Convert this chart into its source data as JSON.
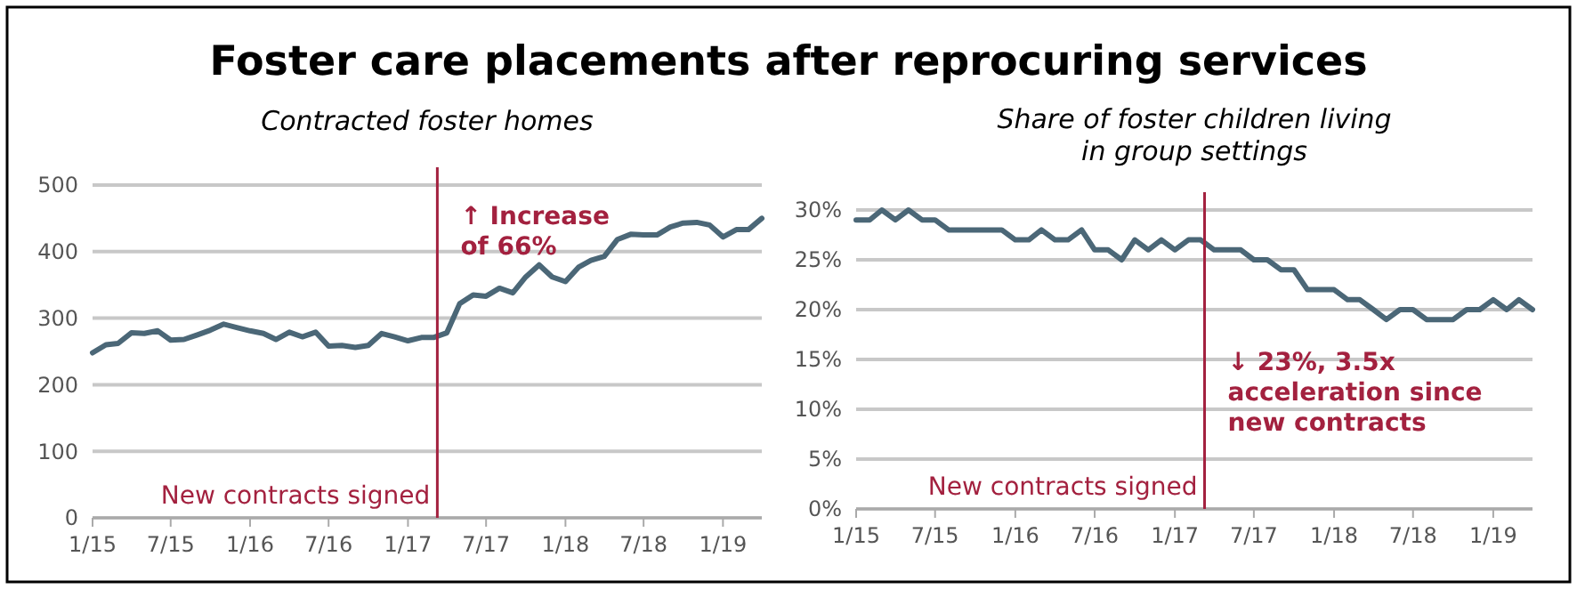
{
  "chart_data": [
    {
      "type": "line",
      "title": "Foster care placements after reprocuring services",
      "subtitle": "Contracted foster homes",
      "x": [
        "2015-01",
        "2015-02",
        "2015-03",
        "2015-04",
        "2015-05",
        "2015-06",
        "2015-07",
        "2015-08",
        "2015-09",
        "2015-10",
        "2015-11",
        "2015-12",
        "2016-01",
        "2016-02",
        "2016-03",
        "2016-04",
        "2016-05",
        "2016-06",
        "2016-07",
        "2016-08",
        "2016-09",
        "2016-10",
        "2016-11",
        "2016-12",
        "2017-01",
        "2017-02",
        "2017-03",
        "2017-04",
        "2017-05",
        "2017-06",
        "2017-07",
        "2017-08",
        "2017-09",
        "2017-10",
        "2017-11",
        "2017-12",
        "2018-01",
        "2018-02",
        "2018-03",
        "2018-04",
        "2018-05",
        "2018-06",
        "2018-07",
        "2018-08",
        "2018-09",
        "2018-10",
        "2018-11",
        "2018-12",
        "2019-01",
        "2019-02",
        "2019-03",
        "2019-04"
      ],
      "series": [
        {
          "color": "#4b6777",
          "values": [
            248,
            260,
            262,
            278,
            277,
            281,
            267,
            268,
            275,
            282,
            291,
            286,
            281,
            277,
            268,
            279,
            272,
            279,
            258,
            259,
            256,
            259,
            277,
            272,
            266,
            271,
            271,
            278,
            322,
            335,
            333,
            345,
            338,
            362,
            380,
            362,
            355,
            377,
            387,
            393,
            418,
            426,
            425,
            425,
            437,
            443,
            444,
            440,
            422,
            433,
            433,
            450
          ]
        }
      ],
      "xlim": [
        "2015-01",
        "2019-04"
      ],
      "xticks": [
        {
          "value": "2015-01",
          "label": "1/15"
        },
        {
          "value": "2015-07",
          "label": "7/15"
        },
        {
          "value": "2016-01",
          "label": "1/16"
        },
        {
          "value": "2016-07",
          "label": "7/16"
        },
        {
          "value": "2017-01",
          "label": "1/17"
        },
        {
          "value": "2017-07",
          "label": "7/17"
        },
        {
          "value": "2018-01",
          "label": "1/18"
        },
        {
          "value": "2018-07",
          "label": "7/18"
        },
        {
          "value": "2019-01",
          "label": "1/19"
        }
      ],
      "ylim": [
        0,
        500
      ],
      "yticks": [
        0,
        100,
        200,
        300,
        400,
        500
      ],
      "grid": "y",
      "ref_lines": [
        {
          "axis": "x",
          "value": "2017-03-10",
          "label": "New contracts signed",
          "color": "#a3213f"
        }
      ],
      "annotations": [
        "↑ Increase\nof 66%"
      ]
    },
    {
      "type": "line",
      "title": "Share of foster children living\nin group settings",
      "x": [
        "2015-01",
        "2015-02",
        "2015-03",
        "2015-04",
        "2015-05",
        "2015-06",
        "2015-07",
        "2015-08",
        "2015-09",
        "2015-10",
        "2015-11",
        "2015-12",
        "2016-01",
        "2016-02",
        "2016-03",
        "2016-04",
        "2016-05",
        "2016-06",
        "2016-07",
        "2016-08",
        "2016-09",
        "2016-10",
        "2016-11",
        "2016-12",
        "2017-01",
        "2017-02",
        "2017-03",
        "2017-04",
        "2017-05",
        "2017-06",
        "2017-07",
        "2017-08",
        "2017-09",
        "2017-10",
        "2017-11",
        "2017-12",
        "2018-01",
        "2018-02",
        "2018-03",
        "2018-04",
        "2018-05",
        "2018-06",
        "2018-07",
        "2018-08",
        "2018-09",
        "2018-10",
        "2018-11",
        "2018-12",
        "2019-01",
        "2019-02",
        "2019-03",
        "2019-04"
      ],
      "series": [
        {
          "color": "#4b6777",
          "values": [
            29,
            29,
            30,
            29,
            30,
            29,
            29,
            28,
            28,
            28,
            28,
            28,
            27,
            27,
            28,
            27,
            27,
            28,
            26,
            26,
            25,
            27,
            26,
            27,
            26,
            27,
            27,
            26,
            26,
            26,
            25,
            25,
            24,
            24,
            22,
            22,
            22,
            21,
            21,
            20,
            19,
            20,
            20,
            19,
            19,
            19,
            20,
            20,
            21,
            20,
            21,
            20
          ]
        }
      ],
      "xlim": [
        "2015-01",
        "2019-04"
      ],
      "xticks": [
        {
          "value": "2015-01",
          "label": "1/15"
        },
        {
          "value": "2015-07",
          "label": "7/15"
        },
        {
          "value": "2016-01",
          "label": "1/16"
        },
        {
          "value": "2016-07",
          "label": "7/16"
        },
        {
          "value": "2017-01",
          "label": "1/17"
        },
        {
          "value": "2017-07",
          "label": "7/17"
        },
        {
          "value": "2018-01",
          "label": "1/18"
        },
        {
          "value": "2018-07",
          "label": "7/18"
        },
        {
          "value": "2019-01",
          "label": "1/19"
        }
      ],
      "ylim": [
        0,
        30
      ],
      "yticks": [
        {
          "value": 0,
          "label": "0%"
        },
        {
          "value": 5,
          "label": "5%"
        },
        {
          "value": 10,
          "label": "10%"
        },
        {
          "value": 15,
          "label": "15%"
        },
        {
          "value": 20,
          "label": "20%"
        },
        {
          "value": 25,
          "label": "25%"
        },
        {
          "value": 30,
          "label": "30%"
        }
      ],
      "grid": "y",
      "ref_lines": [
        {
          "axis": "x",
          "value": "2017-03-10",
          "label": "New contracts signed",
          "color": "#a3213f"
        }
      ],
      "annotations": [
        "↓ 23%, 3.5x\nacceleration since\nnew contracts"
      ]
    }
  ]
}
